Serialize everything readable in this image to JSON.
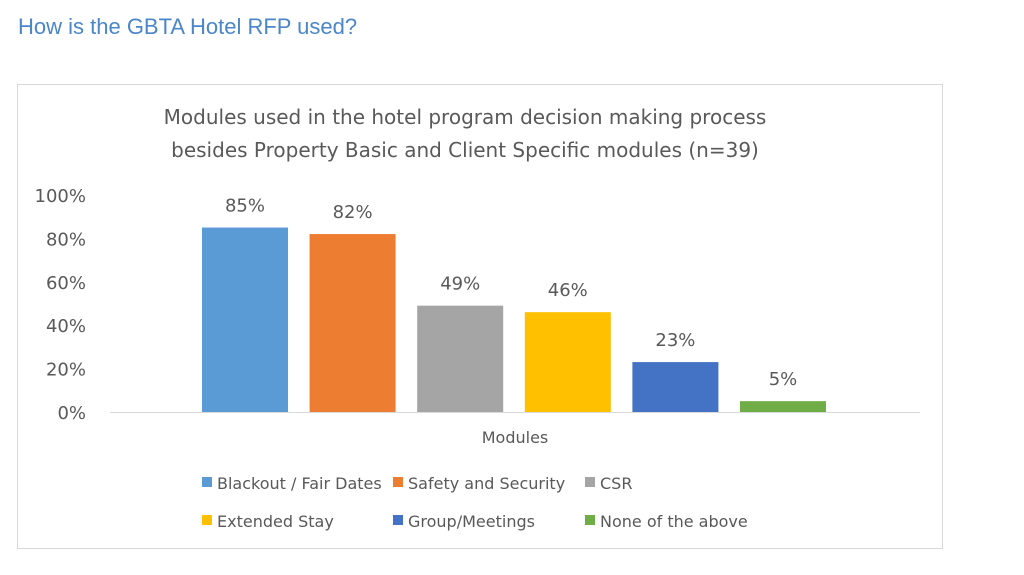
{
  "page": {
    "title": "How is the GBTA Hotel RFP used?"
  },
  "chart_data": {
    "type": "bar",
    "title_lines": [
      "Modules used in the hotel program decision making process",
      "besides Property Basic and Client Specific modules (n=39)"
    ],
    "categories": [
      "Modules"
    ],
    "xlabel": "Modules",
    "ylabel": "",
    "ylim": [
      0,
      100
    ],
    "yticks": [
      "0%",
      "20%",
      "40%",
      "60%",
      "80%",
      "100%"
    ],
    "grid": false,
    "legend_placement": "bottom",
    "series": [
      {
        "name": "Blackout / Fair Dates",
        "values": [
          85
        ],
        "label": "85%",
        "color": "#5b9bd5"
      },
      {
        "name": "Safety and Security",
        "values": [
          82
        ],
        "label": "82%",
        "color": "#ed7d31"
      },
      {
        "name": "CSR",
        "values": [
          49
        ],
        "label": "49%",
        "color": "#a5a5a5"
      },
      {
        "name": "Extended Stay",
        "values": [
          46
        ],
        "label": "46%",
        "color": "#ffc000"
      },
      {
        "name": "Group/Meetings",
        "values": [
          23
        ],
        "label": "23%",
        "color": "#4472c4"
      },
      {
        "name": "None of the above",
        "values": [
          5
        ],
        "label": "5%",
        "color": "#70ad47"
      }
    ]
  }
}
